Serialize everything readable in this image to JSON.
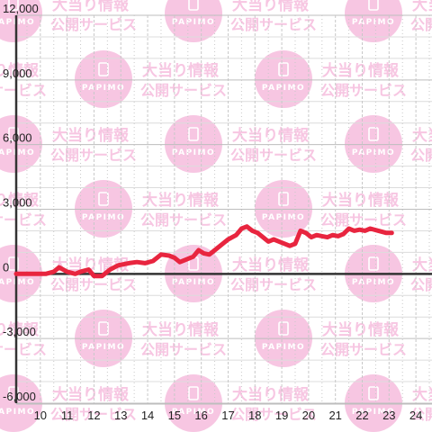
{
  "watermark": {
    "brand": "PAPIMO",
    "line1": "大当り情報",
    "line2": "公開サービス",
    "color": "#f7c6e2"
  },
  "chart_data": {
    "type": "line",
    "x_ticks": [
      "10",
      "11",
      "12",
      "13",
      "14",
      "15",
      "16",
      "17",
      "18",
      "19",
      "20",
      "21",
      "22",
      "23",
      "24"
    ],
    "y_ticks": [
      "12,000",
      "9,000",
      "6,000",
      "3,000",
      "0",
      "-3,000",
      "-6,000"
    ],
    "xlim": [
      9.1,
      24.6
    ],
    "ylim": [
      -6000,
      12000
    ],
    "grid": true,
    "line_color": "#e8253f",
    "series": [
      {
        "x": [
          9.1,
          10.2,
          10.5,
          10.7,
          11.0,
          11.3,
          11.5,
          11.8,
          12.0,
          12.3,
          12.6,
          12.9,
          13.3,
          13.6,
          13.9,
          14.2,
          14.5,
          14.8,
          15.0,
          15.2,
          15.4,
          15.7,
          15.9,
          16.1,
          16.3,
          16.5,
          16.8,
          17.0,
          17.3,
          17.5,
          17.7,
          17.9,
          18.1,
          18.3,
          18.5,
          18.7,
          18.9,
          19.1,
          19.3,
          19.5,
          19.7,
          19.9,
          20.1,
          20.3,
          20.5,
          20.7,
          20.9,
          21.1,
          21.3,
          21.5,
          21.7,
          21.9,
          22.1,
          22.3,
          22.6,
          22.9,
          23.1
        ],
        "y": [
          0,
          0,
          100,
          300,
          100,
          0,
          100,
          200,
          -100,
          -100,
          200,
          400,
          500,
          550,
          500,
          600,
          900,
          850,
          750,
          550,
          650,
          800,
          1100,
          950,
          900,
          1100,
          1400,
          1600,
          1800,
          2100,
          2200,
          2000,
          1900,
          1700,
          1500,
          1600,
          1500,
          1400,
          1300,
          1400,
          2000,
          1900,
          1700,
          1800,
          1750,
          1700,
          1800,
          1750,
          1850,
          2100,
          2000,
          2050,
          2000,
          2100,
          2000,
          1900,
          1900
        ]
      }
    ]
  }
}
